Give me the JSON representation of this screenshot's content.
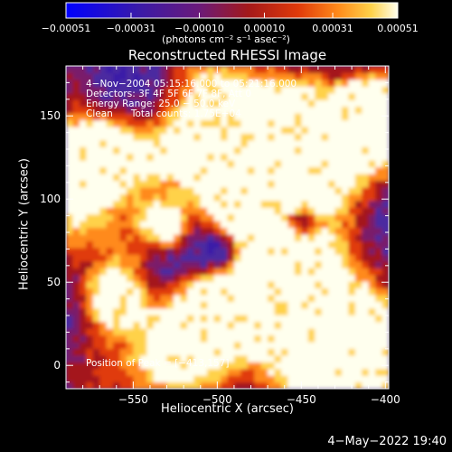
{
  "chart_data": {
    "type": "heatmap",
    "title": "Reconstructed RHESSI Image",
    "xlabel": "Heliocentric X (arcsec)",
    "ylabel": "Heliocentric Y (arcsec)",
    "xlim": [
      -590,
      -398
    ],
    "ylim": [
      -14,
      180
    ],
    "x_ticks": [
      -550,
      -500,
      -450,
      -400
    ],
    "y_ticks": [
      0,
      50,
      100,
      150
    ],
    "x_tick_labels": [
      "−550",
      "−500",
      "−450",
      "−400"
    ],
    "y_tick_labels": [
      "0",
      "50",
      "100",
      "150"
    ],
    "colorbar": {
      "min": -0.00051,
      "max": 0.00051,
      "ticks": [
        -0.00051,
        -0.00031,
        -0.0001,
        0.0001,
        0.00031,
        0.00051
      ],
      "tick_labels": [
        "−0.00051",
        "−0.00031",
        "−0.00010",
        "0.00010",
        "0.00031",
        "0.00051"
      ],
      "unit_label": "(photons cm⁻² s⁻¹ asec⁻²)",
      "colormap": [
        "#0000ff",
        "#3a1aa8",
        "#4b2aa0",
        "#7a1a6a",
        "#a4191a",
        "#e03a0a",
        "#ff8a1a",
        "#ffd24a",
        "#ffffee"
      ]
    },
    "annotations": {
      "time_range": "4−Nov−2004 05:15:16.000 to 05:21:16.000",
      "detectors": "Detectors: 3F 4F 5F 6F 7F 8F, Att 0",
      "energy_range": "Energy Range: 25.0 − 50.0 keV",
      "clean": "Clean      Total counts: 1.75E+04",
      "peak": "Position of Peak = [−413,157]"
    },
    "peak_position": [
      -413,
      157
    ],
    "grid": false
  },
  "footer": {
    "timestamp": "4−May−2022 19:40"
  },
  "colors": {
    "background": "#000000",
    "foreground": "#ffffff"
  }
}
